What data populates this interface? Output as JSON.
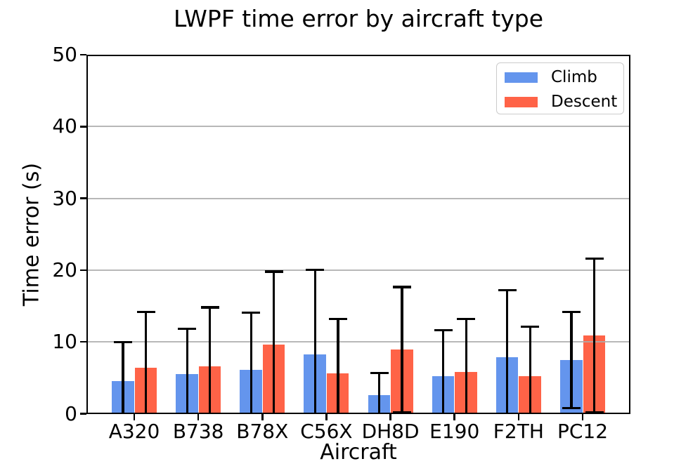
{
  "chart_data": {
    "type": "bar",
    "title": "LWPF time error by aircraft type",
    "xlabel": "Aircraft",
    "ylabel": "Time error (s)",
    "categories": [
      "A320",
      "B738",
      "B78X",
      "C56X",
      "DH8D",
      "E190",
      "F2TH",
      "PC12"
    ],
    "series": [
      {
        "name": "Climb",
        "color": "#6495ED",
        "values": [
          4.5,
          5.5,
          6.1,
          8.3,
          2.6,
          5.2,
          7.9,
          7.5
        ],
        "errors": [
          5.5,
          6.3,
          8.0,
          11.7,
          3.1,
          6.4,
          9.3,
          6.7
        ]
      },
      {
        "name": "Descent",
        "color": "#FF6347",
        "values": [
          6.4,
          6.6,
          9.6,
          5.6,
          8.9,
          5.8,
          5.2,
          10.9
        ],
        "errors": [
          7.8,
          8.2,
          10.2,
          7.6,
          8.75,
          7.4,
          6.9,
          10.7
        ]
      }
    ],
    "ylim": [
      0,
      50
    ],
    "yticks": [
      0,
      10,
      20,
      30,
      40,
      50
    ],
    "grid": true,
    "grid_color": "#ababab",
    "error_bar_color": "#000000",
    "axis_color": "#000000",
    "legend_position": "upper right"
  }
}
